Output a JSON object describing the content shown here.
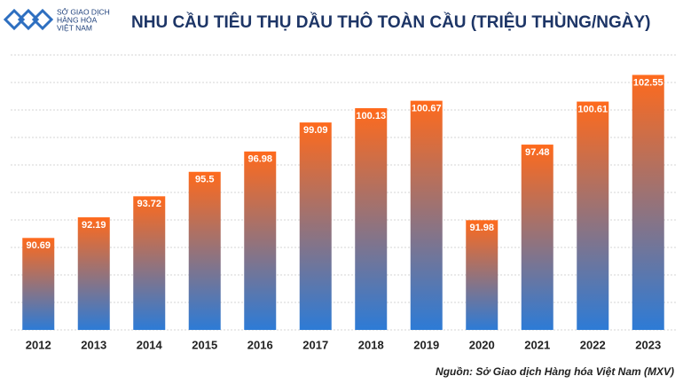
{
  "logo": {
    "lines": [
      "SỞ GIAO DỊCH",
      "HÀNG HÓA",
      "VIỆT NAM"
    ]
  },
  "chart_data": {
    "type": "bar",
    "title": "NHU CẦU TIÊU THỤ DẦU THÔ TOÀN CẦU (TRIỆU THÙNG/NGÀY)",
    "categories": [
      "2012",
      "2013",
      "2014",
      "2015",
      "2016",
      "2017",
      "2018",
      "2019",
      "2020",
      "2021",
      "2022",
      "2023"
    ],
    "values": [
      90.69,
      92.19,
      93.72,
      95.5,
      96.98,
      99.09,
      100.13,
      100.67,
      91.98,
      97.48,
      100.61,
      102.55
    ],
    "gradient": [
      "#ff6a1c",
      "#2d7bd6"
    ],
    "ylim": [
      84,
      104
    ],
    "yticks": [
      84,
      86,
      88,
      90,
      92,
      94,
      96,
      98,
      100,
      102,
      104
    ],
    "grid": true,
    "source": "Nguồn: Sở Giao dịch Hàng hóa Việt Nam (MXV)"
  }
}
